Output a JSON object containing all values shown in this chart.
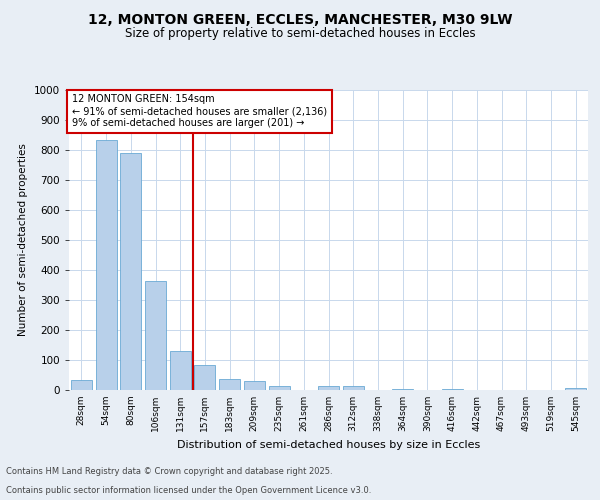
{
  "title_line1": "12, MONTON GREEN, ECCLES, MANCHESTER, M30 9LW",
  "title_line2": "Size of property relative to semi-detached houses in Eccles",
  "xlabel": "Distribution of semi-detached houses by size in Eccles",
  "ylabel": "Number of semi-detached properties",
  "categories": [
    "28sqm",
    "54sqm",
    "80sqm",
    "106sqm",
    "131sqm",
    "157sqm",
    "183sqm",
    "209sqm",
    "235sqm",
    "261sqm",
    "286sqm",
    "312sqm",
    "338sqm",
    "364sqm",
    "390sqm",
    "416sqm",
    "442sqm",
    "467sqm",
    "493sqm",
    "519sqm",
    "545sqm"
  ],
  "values": [
    35,
    835,
    790,
    365,
    130,
    82,
    37,
    31,
    14,
    0,
    13,
    13,
    0,
    5,
    0,
    5,
    0,
    0,
    0,
    0,
    7
  ],
  "bar_color": "#b8d0ea",
  "bar_edge_color": "#6aaad4",
  "grid_color": "#c8d8ec",
  "vline_color": "#cc0000",
  "annotation_box_color": "#cc0000",
  "annotation_text": "12 MONTON GREEN: 154sqm\n← 91% of semi-detached houses are smaller (2,136)\n9% of semi-detached houses are larger (201) →",
  "footer_line1": "Contains HM Land Registry data © Crown copyright and database right 2025.",
  "footer_line2": "Contains public sector information licensed under the Open Government Licence v3.0.",
  "ylim": [
    0,
    1000
  ],
  "yticks": [
    0,
    100,
    200,
    300,
    400,
    500,
    600,
    700,
    800,
    900,
    1000
  ],
  "background_color": "#e8eef5",
  "plot_background": "#ffffff",
  "vline_bar_index": 5
}
